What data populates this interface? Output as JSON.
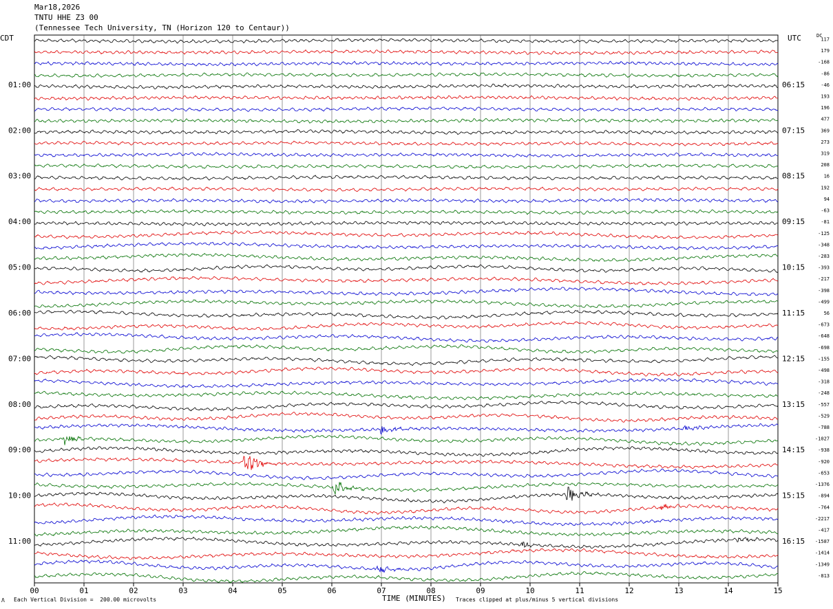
{
  "header": {
    "date": "Mar18,2026",
    "station": "TNTU HHE Z3 00",
    "location": "(Tennessee Tech University, TN (Horizon 120 to Centaur))"
  },
  "labels": {
    "left_tz": "CDT",
    "right_tz": "UTC",
    "dc": "DC",
    "x_axis_title": "TIME (MINUTES)",
    "footer_scale": "Each Vertical Division =  200.00 microvolts",
    "footer_clip": "Traces clipped at plus/minus 5 vertical divisions",
    "footer_mark": "Λ"
  },
  "colors": {
    "trace_cycle": [
      "#000000",
      "#e00000",
      "#0000d0",
      "#007000"
    ],
    "grid": "#000000",
    "background": "#ffffff"
  },
  "chart_data": {
    "type": "line",
    "title": "TNTU HHE Z3 00",
    "xlabel": "TIME (MINUTES)",
    "xlim": [
      0,
      15
    ],
    "x_ticks": [
      "00",
      "01",
      "02",
      "03",
      "04",
      "05",
      "06",
      "07",
      "08",
      "09",
      "10",
      "11",
      "12",
      "13",
      "14",
      "15"
    ],
    "grid_x": true,
    "trace_count": 48,
    "y_ticks_left": [
      "01:00",
      "02:00",
      "03:00",
      "04:00",
      "05:00",
      "06:00",
      "07:00",
      "08:00",
      "09:00",
      "10:00",
      "11:00"
    ],
    "y_ticks_right": [
      "06:15",
      "07:15",
      "08:15",
      "09:15",
      "10:15",
      "11:15",
      "12:15",
      "13:15",
      "14:15",
      "15:15",
      "16:15"
    ],
    "dc_offsets": [
      "117",
      "179",
      "-168",
      "-86",
      "-46",
      "193",
      "196",
      "477",
      "369",
      "273",
      "319",
      "208",
      "16",
      "192",
      "94",
      "-63",
      "-81",
      "-125",
      "-348",
      "-283",
      "-393",
      "-217",
      "-398",
      "-499",
      "56",
      "-673",
      "-648",
      "-698",
      "-155",
      "-498",
      "-318",
      "-248",
      "-557",
      "-529",
      "-788",
      "-1027",
      "-938",
      "-920",
      "-653",
      "-1376",
      "-894",
      "-764",
      "-2217",
      "-417",
      "-1587",
      "-1414",
      "-1349",
      "-813"
    ],
    "events": [
      {
        "trace": 35,
        "minute": 0.6,
        "amplitude": 2.2
      },
      {
        "trace": 34,
        "minute": 7.0,
        "amplitude": 2.0
      },
      {
        "trace": 34,
        "minute": 13.1,
        "amplitude": 1.1
      },
      {
        "trace": 37,
        "minute": 4.25,
        "amplitude": 5.0
      },
      {
        "trace": 39,
        "minute": 6.05,
        "amplitude": 4.0
      },
      {
        "trace": 40,
        "minute": 10.75,
        "amplitude": 4.0
      },
      {
        "trace": 41,
        "minute": 12.65,
        "amplitude": 1.6
      },
      {
        "trace": 44,
        "minute": 9.85,
        "amplitude": 1.3
      },
      {
        "trace": 44,
        "minute": 14.2,
        "amplitude": 1.1
      },
      {
        "trace": 46,
        "minute": 6.9,
        "amplitude": 2.0
      }
    ]
  }
}
